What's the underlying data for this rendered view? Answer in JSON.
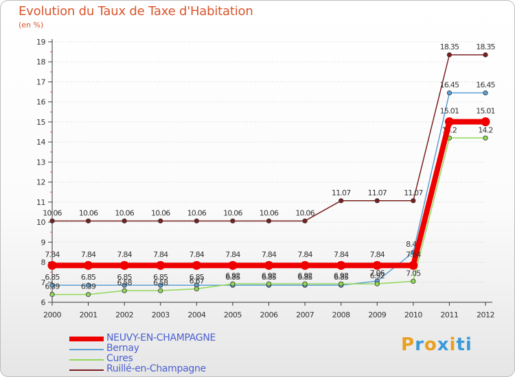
{
  "title": "Evolution du Taux de Taxe d'Habitation",
  "subtitle": "(en %)",
  "brand_letters": [
    "P",
    "r",
    "o",
    "x",
    "i",
    "ti"
  ],
  "chart_data": {
    "type": "line",
    "x": [
      2000,
      2001,
      2002,
      2003,
      2004,
      2005,
      2006,
      2007,
      2008,
      2009,
      2010,
      2011,
      2012
    ],
    "ylim": [
      6,
      19
    ],
    "yticks": [
      6,
      7,
      8,
      9,
      10,
      11,
      12,
      13,
      14,
      15,
      16,
      17,
      18,
      19
    ],
    "grid": "horizontal dotted",
    "legend_position": "bottom-left",
    "series": [
      {
        "name": "Ruillé-en-Champagne",
        "color": "#7a1f1f",
        "width": 1.5,
        "values": [
          10.06,
          10.06,
          10.06,
          10.06,
          10.06,
          10.06,
          10.06,
          10.06,
          11.07,
          11.07,
          11.07,
          18.35,
          18.35
        ],
        "labels": [
          "10.06",
          "10.06",
          "10.06",
          "10.06",
          "10.06",
          "10.06",
          "10.06",
          "10.06",
          "11.07",
          "11.07",
          "11.07",
          "18.35",
          "18.35"
        ]
      },
      {
        "name": "Bernay",
        "color": "#5a9fd4",
        "width": 1.5,
        "values": [
          6.85,
          6.85,
          6.85,
          6.85,
          6.85,
          6.85,
          6.85,
          6.85,
          6.85,
          7.06,
          8.49,
          16.45,
          16.45
        ],
        "labels": [
          "6.85",
          "6.85",
          "6.85",
          "6.85",
          "6.85",
          "6.85",
          "6.85",
          "6.85",
          "6.85",
          "7.06",
          "8.49",
          "16.45",
          "16.45"
        ]
      },
      {
        "name": "Cures",
        "color": "#8fd855",
        "width": 1.5,
        "values": [
          6.39,
          6.39,
          6.58,
          6.58,
          6.67,
          6.92,
          6.92,
          6.92,
          6.92,
          6.92,
          7.05,
          14.2,
          14.2
        ],
        "labels": [
          "6.39",
          "6.39",
          "6.58",
          "6.58",
          "6.67",
          "6.92",
          "6.92",
          "6.92",
          "6.92",
          "6.92",
          "7.05",
          "14.2",
          "14.2"
        ]
      },
      {
        "name": "NEUVY-EN-CHAMPAGNE",
        "color": "#ee0000",
        "width": 8,
        "values": [
          7.84,
          7.84,
          7.84,
          7.84,
          7.84,
          7.84,
          7.84,
          7.84,
          7.84,
          7.84,
          7.84,
          15.01,
          15.01
        ],
        "labels": [
          "7.84",
          "7.84",
          "7.84",
          "7.84",
          "7.84",
          "7.84",
          "7.84",
          "7.84",
          "7.84",
          "7.84",
          "7.84",
          "15.01",
          "15.01"
        ]
      }
    ],
    "legend": [
      {
        "name": "NEUVY-EN-CHAMPAGNE",
        "color": "#ee0000",
        "thick": true
      },
      {
        "name": "Bernay",
        "color": "#5a9fd4",
        "thick": false
      },
      {
        "name": "Cures",
        "color": "#8fd855",
        "thick": false
      },
      {
        "name": "Ruillé-en-Champagne",
        "color": "#7a1f1f",
        "thick": false
      }
    ]
  }
}
